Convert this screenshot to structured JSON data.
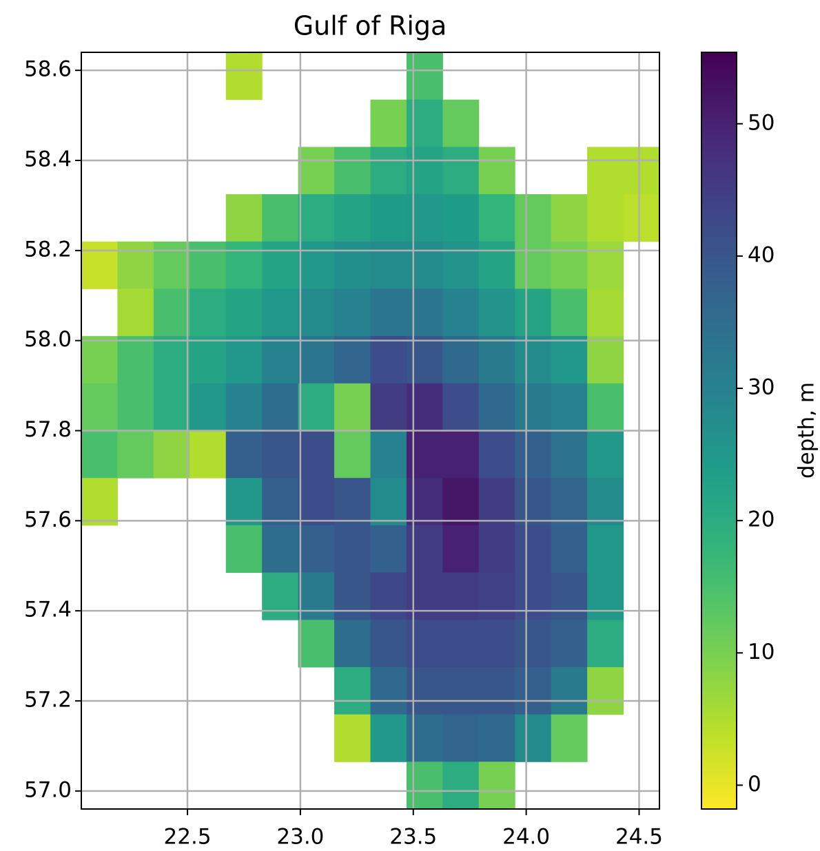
{
  "chart_data": {
    "type": "heatmap",
    "title": "Gulf of Riga",
    "colormap": "viridis_r",
    "colorbar_label": "depth, m",
    "clim": [
      -1.8,
      55.4
    ],
    "colorbar_ticks": [
      0,
      10,
      20,
      30,
      40,
      50
    ],
    "grid": true,
    "xlim": [
      22.03,
      24.59
    ],
    "ylim": [
      56.96,
      58.64
    ],
    "xticks": [
      22.5,
      {
        "value": 23,
        "label": "23.0"
      },
      23.5,
      {
        "value": 24,
        "label": "24.0"
      },
      24.5
    ],
    "yticks": [
      {
        "value": 57,
        "label": "57.0"
      },
      57.2,
      57.4,
      57.6,
      57.8,
      {
        "value": 58,
        "label": "58.0"
      },
      58.2,
      58.4,
      58.6
    ],
    "x": [
      22.03,
      22.19,
      22.35,
      22.51,
      22.67,
      22.83,
      22.99,
      23.15,
      23.31,
      23.47,
      23.63,
      23.79,
      23.95,
      24.11,
      24.27,
      24.43,
      24.59
    ],
    "y": [
      58.64,
      58.535,
      58.43,
      58.325,
      58.22,
      58.115,
      58.01,
      57.905,
      57.8,
      57.695,
      57.59,
      57.485,
      57.38,
      57.275,
      57.17,
      57.065,
      56.96
    ],
    "z": [
      [
        null,
        null,
        null,
        null,
        5,
        null,
        null,
        null,
        null,
        15,
        null,
        null,
        null,
        null,
        null,
        null
      ],
      [
        null,
        null,
        null,
        null,
        null,
        null,
        null,
        null,
        10,
        20,
        12,
        null,
        null,
        null,
        null,
        null
      ],
      [
        null,
        null,
        null,
        null,
        null,
        null,
        10,
        15,
        20,
        22,
        20,
        10,
        null,
        null,
        5,
        5
      ],
      [
        null,
        null,
        null,
        null,
        8,
        15,
        20,
        22,
        24,
        25,
        24,
        18,
        12,
        8,
        5,
        4
      ],
      [
        3,
        8,
        12,
        15,
        18,
        22,
        25,
        27,
        28,
        28,
        26,
        22,
        12,
        10,
        7,
        null
      ],
      [
        null,
        6,
        15,
        20,
        22,
        25,
        28,
        30,
        33,
        33,
        30,
        26,
        22,
        15,
        6,
        null
      ],
      [
        10,
        15,
        20,
        22,
        25,
        30,
        33,
        37,
        42,
        40,
        36,
        32,
        28,
        25,
        8,
        null
      ],
      [
        12,
        15,
        20,
        25,
        30,
        35,
        20,
        10,
        45,
        48,
        42,
        36,
        32,
        30,
        15,
        null
      ],
      [
        15,
        12,
        8,
        5,
        38,
        40,
        42,
        12,
        30,
        50,
        50,
        42,
        38,
        34,
        25,
        null
      ],
      [
        5,
        null,
        null,
        null,
        25,
        38,
        42,
        40,
        28,
        48,
        52,
        45,
        40,
        37,
        28,
        null
      ],
      [
        null,
        null,
        null,
        null,
        15,
        35,
        38,
        40,
        38,
        45,
        50,
        45,
        42,
        38,
        25,
        null
      ],
      [
        null,
        null,
        null,
        null,
        null,
        20,
        32,
        40,
        43,
        45,
        45,
        44,
        42,
        40,
        25,
        null
      ],
      [
        null,
        null,
        null,
        null,
        null,
        null,
        15,
        35,
        40,
        42,
        42,
        42,
        40,
        38,
        20,
        null
      ],
      [
        null,
        null,
        null,
        null,
        null,
        null,
        null,
        20,
        36,
        40,
        40,
        40,
        38,
        32,
        8,
        null
      ],
      [
        null,
        null,
        null,
        null,
        null,
        null,
        null,
        5,
        25,
        35,
        37,
        36,
        28,
        12,
        null,
        null
      ],
      [
        null,
        null,
        null,
        null,
        null,
        null,
        null,
        null,
        null,
        15,
        20,
        10,
        null,
        null,
        null,
        null
      ]
    ]
  }
}
